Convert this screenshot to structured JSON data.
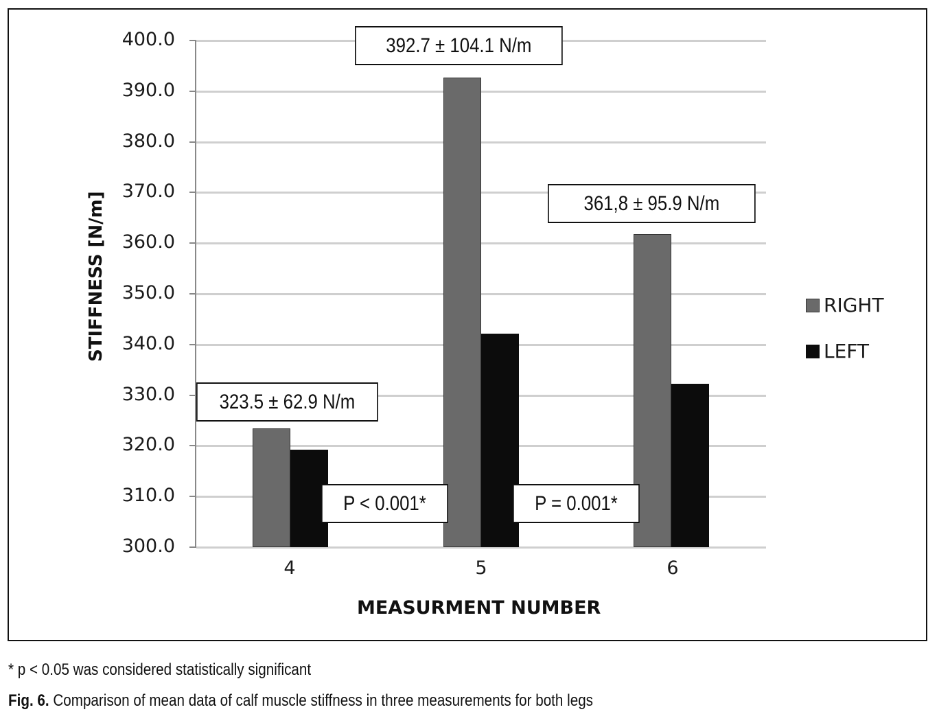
{
  "chart_data": {
    "type": "bar",
    "title": "",
    "xlabel": "MEASURMENT NUMBER",
    "ylabel": "STIFFNESS [N/m]",
    "categories": [
      "4",
      "5",
      "6"
    ],
    "series": [
      {
        "name": "RIGHT",
        "color": "#6a6a6a",
        "values": [
          323.5,
          392.7,
          361.8
        ]
      },
      {
        "name": "LEFT",
        "color": "#0c0c0c",
        "values": [
          319.2,
          342.2,
          332.3
        ]
      }
    ],
    "ylim": [
      300.0,
      400.0
    ],
    "yticks": [
      "400.0",
      "390.0",
      "380.0",
      "370.0",
      "360.0",
      "350.0",
      "340.0",
      "330.0",
      "320.0",
      "310.0",
      "300.0"
    ],
    "grid": true,
    "legend_position": "right",
    "annotations": [
      {
        "text": "323.5 ± 62.9 N/m",
        "target": "4-RIGHT"
      },
      {
        "text": "392.7 ± 104.1 N/m",
        "target": "5-RIGHT"
      },
      {
        "text": "361,8 ± 95.9 N/m",
        "target": "6-RIGHT"
      },
      {
        "text": "P < 0.001*",
        "between": [
          "4",
          "5"
        ]
      },
      {
        "text": "P = 0.001*",
        "between": [
          "5",
          "6"
        ]
      }
    ]
  },
  "legend": {
    "right": "RIGHT",
    "left": "LEFT"
  },
  "footnote": "* p < 0.05 was considered statistically significant",
  "caption": {
    "label": "Fig. 6.",
    "text": " Comparison of mean data of calf muscle stiffness in three measurements for both legs"
  }
}
